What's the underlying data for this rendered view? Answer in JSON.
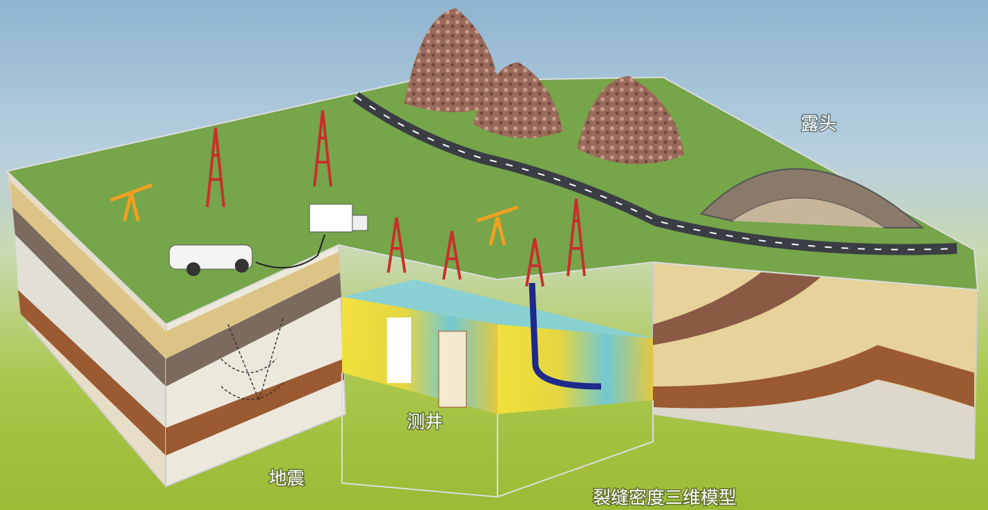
{
  "labels": [
    {
      "text": "露头"
    },
    {
      "text": "测井"
    },
    {
      "text": "地震"
    },
    {
      "text": "裂缝密度三维模型"
    }
  ]
}
